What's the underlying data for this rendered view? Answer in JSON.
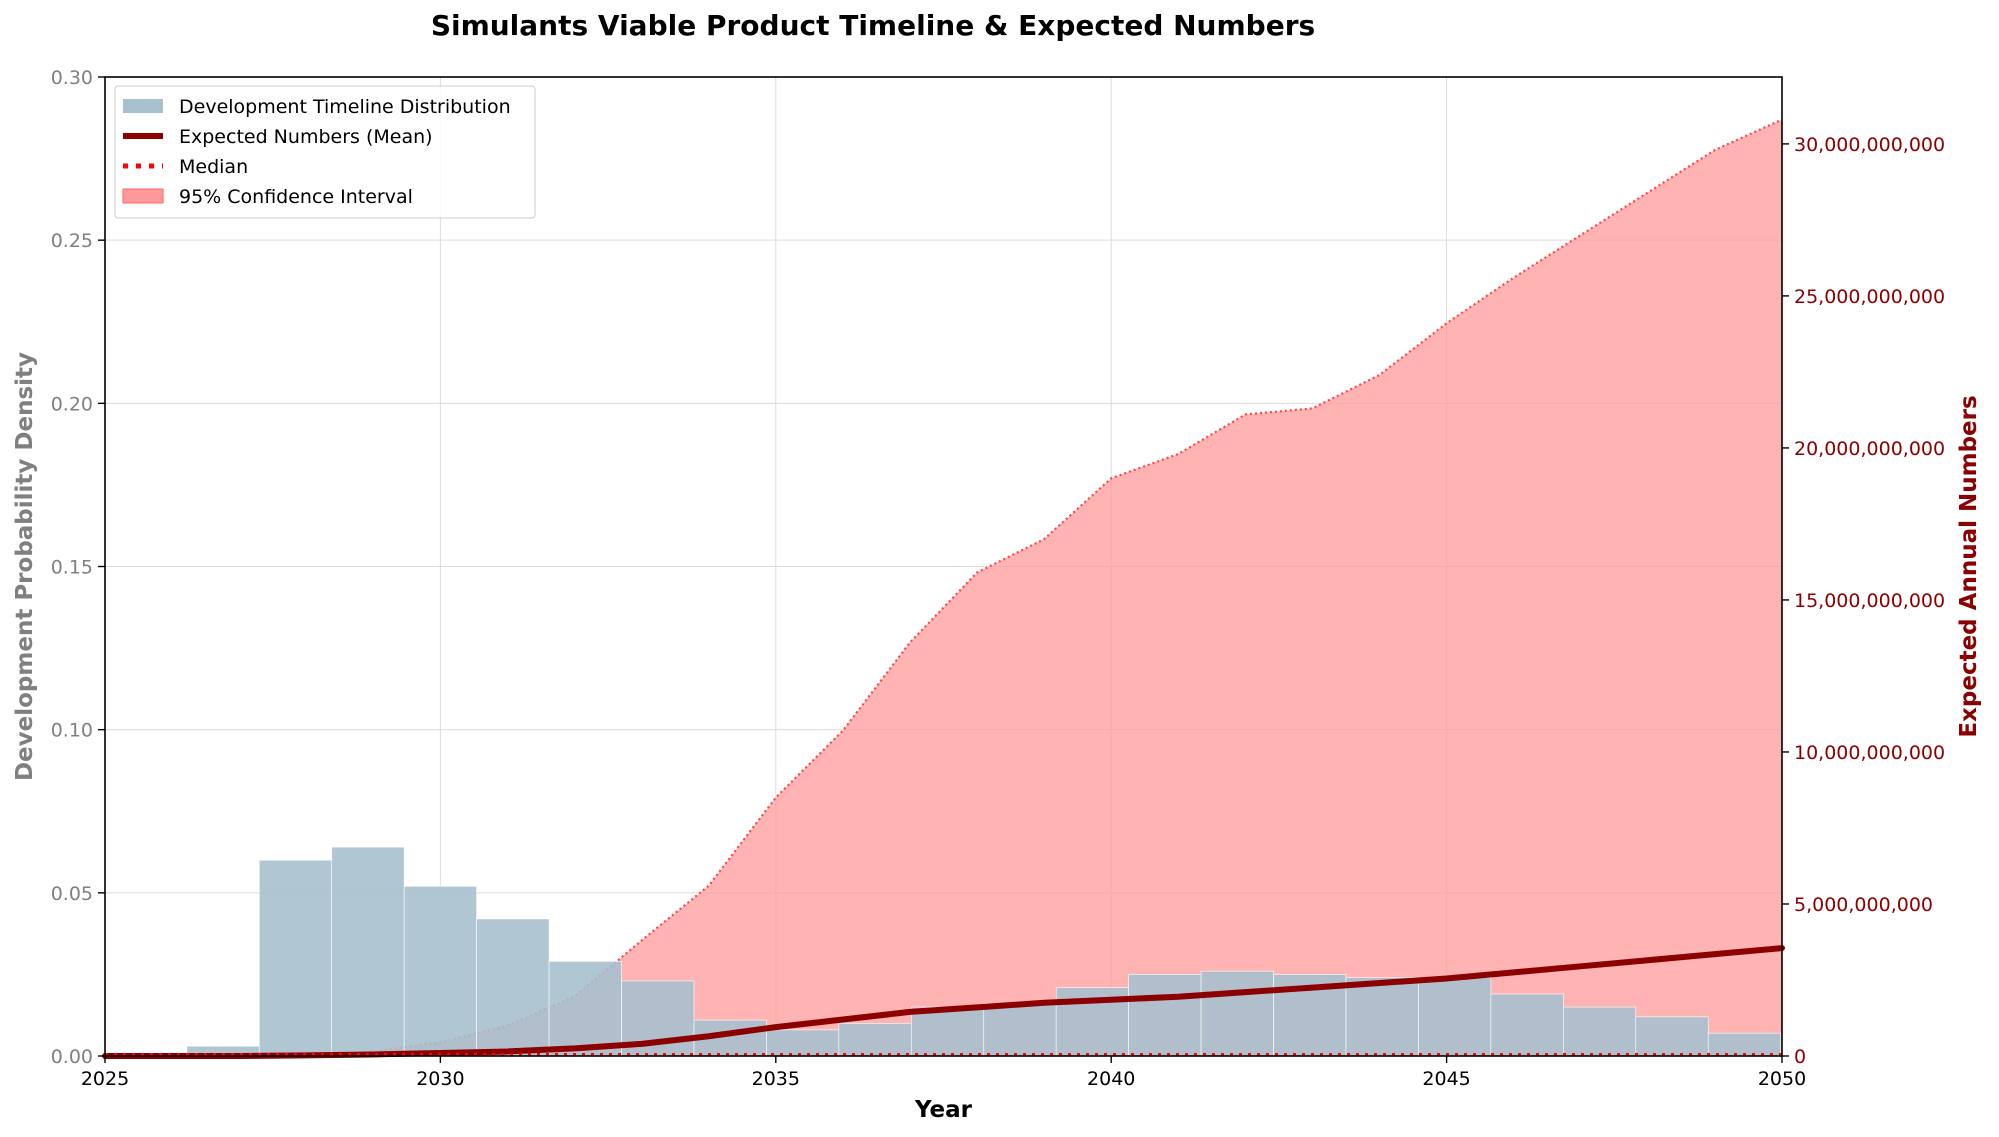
{
  "chart_data": {
    "type": "bar+line",
    "title": "Simulants Viable Product Timeline & Expected Numbers",
    "xlabel": "Year",
    "ylabel_left": "Development Probability Density",
    "ylabel_right": "Expected Annual Numbers",
    "xlim": [
      2025,
      2050
    ],
    "ylim_left": [
      0,
      0.3
    ],
    "ylim_right": [
      0,
      32200000000
    ],
    "x_ticks": [
      2025,
      2030,
      2035,
      2040,
      2045,
      2050
    ],
    "x_tick_labels": [
      "2025",
      "2030",
      "2035",
      "2040",
      "2045",
      "2050"
    ],
    "y_left_ticks": [
      0,
      0.05,
      0.1,
      0.15,
      0.2,
      0.25,
      0.3
    ],
    "y_left_tick_labels": [
      "0.00",
      "0.05",
      "0.10",
      "0.15",
      "0.20",
      "0.25",
      "0.30"
    ],
    "y_right_ticks": [
      0,
      5000000000,
      10000000000,
      15000000000,
      20000000000,
      25000000000,
      30000000000
    ],
    "y_right_tick_labels": [
      "0",
      "5,000,000,000",
      "10,000,000,000",
      "15,000,000,000",
      "20,000,000,000",
      "25,000,000,000",
      "30,000,000,000"
    ],
    "grid": true,
    "legend_position": "top-left",
    "legend": [
      {
        "label": "Development Timeline Distribution",
        "kind": "patch",
        "color": "#a7c0cd"
      },
      {
        "label": "Expected Numbers (Mean)",
        "kind": "line",
        "color": "#8b0000"
      },
      {
        "label": "Median",
        "kind": "dotted",
        "color": "#ff0000"
      },
      {
        "label": "95% Confidence Interval",
        "kind": "patch",
        "color": "#ff9999"
      }
    ],
    "histogram": {
      "name": "Development Timeline Distribution",
      "color": "#a7c0cd",
      "bins": [
        {
          "start": 2026.22,
          "end": 2027.3,
          "value": 0.003
        },
        {
          "start": 2027.3,
          "end": 2028.38,
          "value": 0.06
        },
        {
          "start": 2028.38,
          "end": 2029.46,
          "value": 0.064
        },
        {
          "start": 2029.46,
          "end": 2030.54,
          "value": 0.052
        },
        {
          "start": 2030.54,
          "end": 2031.62,
          "value": 0.042
        },
        {
          "start": 2031.62,
          "end": 2032.7,
          "value": 0.029
        },
        {
          "start": 2032.7,
          "end": 2033.78,
          "value": 0.023
        },
        {
          "start": 2033.78,
          "end": 2034.86,
          "value": 0.011
        },
        {
          "start": 2034.86,
          "end": 2035.94,
          "value": 0.008
        },
        {
          "start": 2035.94,
          "end": 2037.02,
          "value": 0.01
        },
        {
          "start": 2037.02,
          "end": 2038.1,
          "value": 0.015
        },
        {
          "start": 2038.1,
          "end": 2039.18,
          "value": 0.016
        },
        {
          "start": 2039.18,
          "end": 2040.26,
          "value": 0.021
        },
        {
          "start": 2040.26,
          "end": 2041.34,
          "value": 0.025
        },
        {
          "start": 2041.34,
          "end": 2042.42,
          "value": 0.026
        },
        {
          "start": 2042.42,
          "end": 2043.5,
          "value": 0.025
        },
        {
          "start": 2043.5,
          "end": 2044.58,
          "value": 0.024
        },
        {
          "start": 2044.58,
          "end": 2045.66,
          "value": 0.024
        },
        {
          "start": 2045.66,
          "end": 2046.74,
          "value": 0.019
        },
        {
          "start": 2046.74,
          "end": 2047.82,
          "value": 0.015
        },
        {
          "start": 2047.82,
          "end": 2048.9,
          "value": 0.012
        },
        {
          "start": 2048.9,
          "end": 2049.98,
          "value": 0.007
        }
      ]
    },
    "series": [
      {
        "name": "Expected Numbers (Mean)",
        "color": "#8b0000",
        "x": [
          2025,
          2026,
          2027,
          2028,
          2029,
          2030,
          2031,
          2032,
          2033,
          2034,
          2035,
          2036,
          2037,
          2038,
          2039,
          2040,
          2041,
          2042,
          2043,
          2044,
          2045,
          2046,
          2047,
          2048,
          2049,
          2050
        ],
        "values": [
          0,
          0,
          0,
          20000000,
          50000000,
          100000000,
          150000000,
          250000000,
          400000000,
          650000000,
          950000000,
          1200000000,
          1450000000,
          1600000000,
          1750000000,
          1850000000,
          1950000000,
          2100000000,
          2250000000,
          2400000000,
          2550000000,
          2750000000,
          2950000000,
          3150000000,
          3350000000,
          3550000000
        ]
      },
      {
        "name": "Median",
        "color": "#ff0000",
        "x": [
          2025,
          2050
        ],
        "values": [
          50000000,
          50000000
        ]
      },
      {
        "name": "95% Confidence Interval",
        "color": "#ff9999",
        "x": [
          2025,
          2026,
          2027,
          2028,
          2029,
          2030,
          2031,
          2032,
          2033,
          2034,
          2035,
          2036,
          2037,
          2038,
          2039,
          2040,
          2041,
          2042,
          2043,
          2044,
          2045,
          2046,
          2047,
          2048,
          2049,
          2050
        ],
        "lower": [
          0,
          0,
          0,
          0,
          0,
          0,
          0,
          0,
          0,
          0,
          0,
          0,
          0,
          0,
          0,
          0,
          0,
          0,
          0,
          0,
          0,
          0,
          0,
          0,
          0,
          0
        ],
        "upper": [
          0,
          0,
          0,
          30000000,
          150000000,
          450000000,
          1000000000,
          1950000000,
          3800000000,
          5600000000,
          8500000000,
          10700000000,
          13600000000,
          15900000000,
          17000000000,
          19000000000,
          19800000000,
          21100000000,
          21300000000,
          22400000000,
          24100000000,
          25600000000,
          27000000000,
          28400000000,
          29800000000,
          30800000000
        ]
      }
    ]
  }
}
